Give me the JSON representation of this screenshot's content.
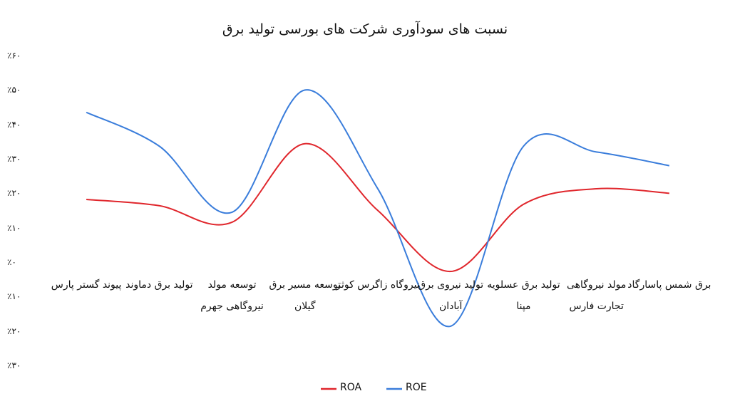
{
  "chart_data": {
    "type": "line",
    "title": "نسبت های سودآوری شرکت های بورسی تولید برق",
    "categories": [
      "پیوند گستر پارس",
      "تولید برق دماوند",
      "توسعه مولد نیروگاهی جهرم",
      "توسعه مسیر برق گیلان",
      "نیروگاه زاگرس کوثر",
      "تولید نیروی برق آبادان",
      "تولید برق عسلویه مپنا",
      "مولد نیروگاهی تجارت فارس",
      "برق شمس پاسارگاد"
    ],
    "series": [
      {
        "name": "ROA",
        "color": "#e0262c",
        "values": [
          18.2,
          16.4,
          11.6,
          34.4,
          15,
          -2.7,
          16.8,
          21.3,
          20
        ]
      },
      {
        "name": "ROE",
        "color": "#3a7ddb",
        "values": [
          43.5,
          33.7,
          14.5,
          50,
          21.3,
          -18.6,
          33.7,
          32,
          28
        ]
      }
    ],
    "ylim": [
      -30,
      60
    ],
    "yticks": [
      {
        "value": 60,
        "label": "٪۶۰"
      },
      {
        "value": 50,
        "label": "٪۵۰"
      },
      {
        "value": 40,
        "label": "٪۴۰"
      },
      {
        "value": 30,
        "label": "٪۳۰"
      },
      {
        "value": 20,
        "label": "٪۲۰"
      },
      {
        "value": 10,
        "label": "٪۱۰"
      },
      {
        "value": 0,
        "label": "٪۰"
      },
      {
        "value": -10,
        "label": "٪۱۰"
      },
      {
        "value": -20,
        "label": "٪۲۰"
      },
      {
        "value": -30,
        "label": "٪۳۰"
      }
    ],
    "grid": false,
    "legend": "bottom"
  }
}
